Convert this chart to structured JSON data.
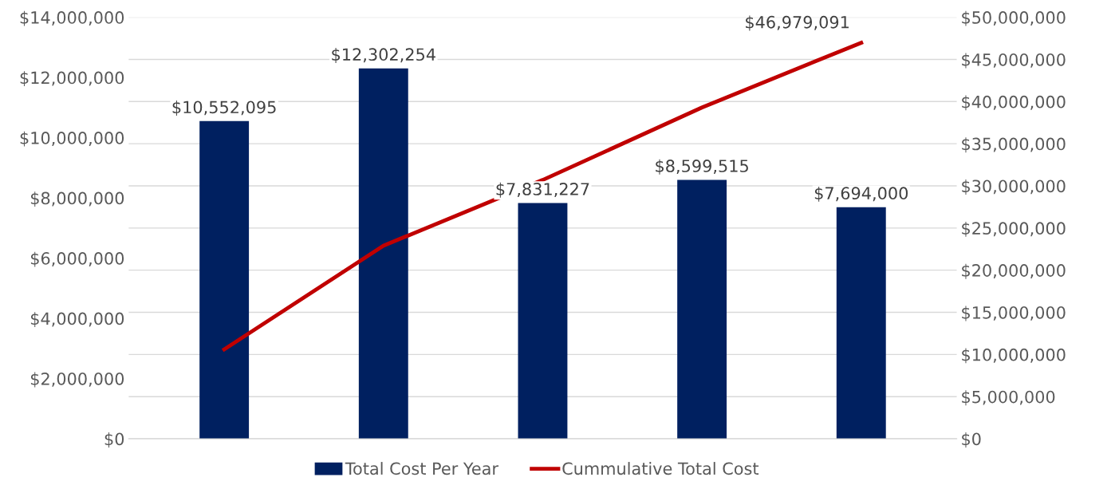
{
  "chart_data": {
    "type": "bar",
    "categories": [
      null,
      null,
      null,
      null,
      null
    ],
    "series": [
      {
        "name": "Total Cost Per Year",
        "color": "#002060",
        "values": [
          10552095,
          12302254,
          7831227,
          8599515,
          7694000
        ],
        "value_labels": [
          "$10,552,095",
          "$12,302,254",
          "$7,831,227",
          "$8,599,515",
          "$7,694,000"
        ]
      },
      {
        "name": "Cummulative Total Cost",
        "type": "line",
        "axis": "y2",
        "color": "#c00000",
        "values": [
          10600000,
          22900000,
          30700000,
          39300000,
          46979091
        ],
        "value_labels": [
          null,
          null,
          null,
          null,
          "$46,979,091"
        ]
      }
    ],
    "ylim": [
      0,
      14000000
    ],
    "yticks": [
      {
        "value": 0,
        "label": "$0"
      },
      {
        "value": 2000000,
        "label": "$2,000,000"
      },
      {
        "value": 4000000,
        "label": "$4,000,000"
      },
      {
        "value": 6000000,
        "label": "$6,000,000"
      },
      {
        "value": 8000000,
        "label": "$8,000,000"
      },
      {
        "value": 10000000,
        "label": "$10,000,000"
      },
      {
        "value": 12000000,
        "label": "$12,000,000"
      },
      {
        "value": 14000000,
        "label": "$14,000,000"
      }
    ],
    "y2lim": [
      0,
      50000000
    ],
    "y2ticks": [
      {
        "value": 0,
        "label": "$0"
      },
      {
        "value": 5000000,
        "label": "$5,000,000"
      },
      {
        "value": 10000000,
        "label": "$10,000,000"
      },
      {
        "value": 15000000,
        "label": "$15,000,000"
      },
      {
        "value": 20000000,
        "label": "$20,000,000"
      },
      {
        "value": 25000000,
        "label": "$25,000,000"
      },
      {
        "value": 30000000,
        "label": "$30,000,000"
      },
      {
        "value": 35000000,
        "label": "$35,000,000"
      },
      {
        "value": 40000000,
        "label": "$40,000,000"
      },
      {
        "value": 45000000,
        "label": "$45,000,000"
      },
      {
        "value": 50000000,
        "label": "$50,000,000"
      }
    ],
    "grid": "y2",
    "legend": "bottom",
    "marker": "none",
    "line_style": "solid"
  }
}
